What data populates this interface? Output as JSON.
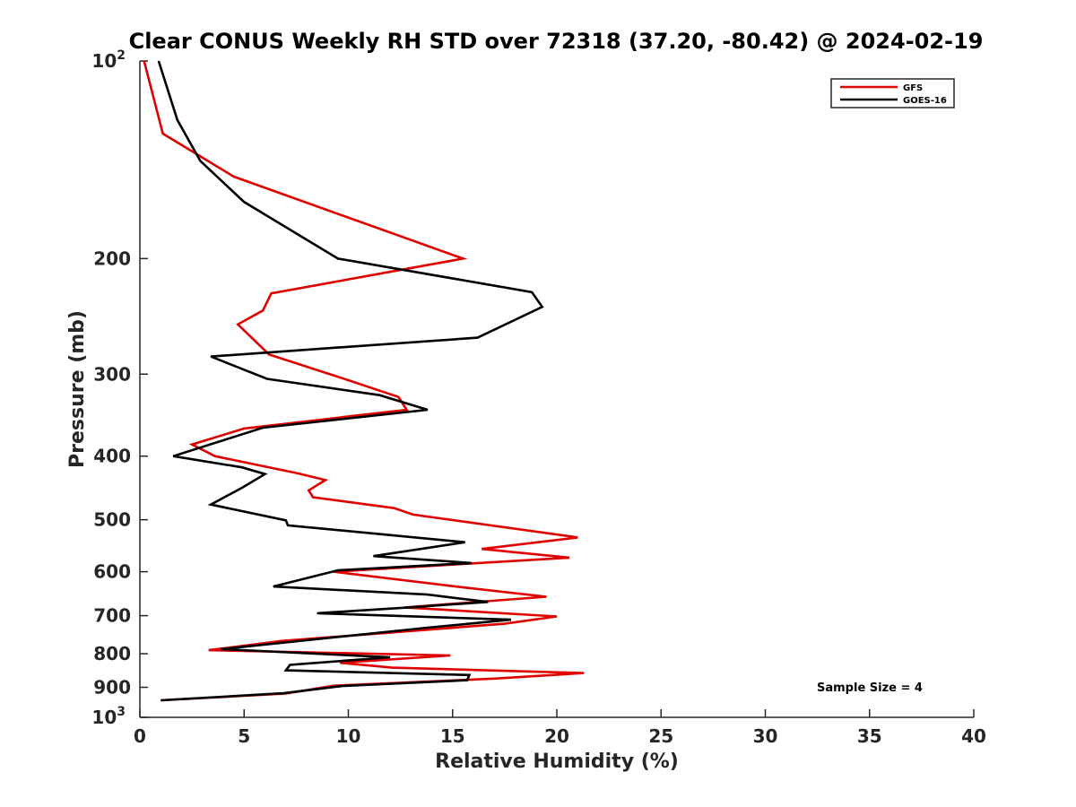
{
  "chart_data": {
    "type": "line",
    "title": "Clear CONUS Weekly RH STD over 72318 (37.20, -80.42) @ 2024-02-19",
    "xlabel": "Relative Humidity (%)",
    "ylabel": "Pressure (mb)",
    "xlim": [
      0,
      40
    ],
    "ylim": [
      100,
      1000
    ],
    "y_scale": "log",
    "y_reversed": true,
    "x_ticks": [
      0,
      5,
      10,
      15,
      20,
      25,
      30,
      35,
      40
    ],
    "x_tick_labels": [
      "0",
      "5",
      "10",
      "15",
      "20",
      "25",
      "30",
      "35",
      "40"
    ],
    "y_ticks": [
      100,
      200,
      300,
      400,
      500,
      600,
      700,
      800,
      900,
      1000
    ],
    "y_tick_labels": [
      "10^2",
      "200",
      "300",
      "400",
      "500",
      "600",
      "700",
      "800",
      "900",
      "10^3"
    ],
    "grid": false,
    "legend_position": "top-right",
    "annotation": "Sample Size = 4",
    "series": [
      {
        "name": "GFS",
        "color": "#e00000",
        "x": [
          0.2,
          1.1,
          4.5,
          15.5,
          6.3,
          5.9,
          4.7,
          6.2,
          9.8,
          12.4,
          12.8,
          5.0,
          2.5,
          3.6,
          7.6,
          8.9,
          8.1,
          8.3,
          12.2,
          13.1,
          21.0,
          16.4,
          20.6,
          9.3,
          15.7,
          19.5,
          12.7,
          20.0,
          17.5,
          6.8,
          3.3,
          14.9,
          9.6,
          12.1,
          21.3,
          17.0,
          9.3,
          7.0,
          1.0
        ],
        "y": [
          100,
          129,
          150,
          200,
          226,
          240,
          252,
          280,
          305,
          325,
          340,
          363,
          384,
          400,
          425,
          435,
          451,
          462,
          480,
          491,
          532,
          554,
          571,
          600,
          635,
          655,
          680,
          702,
          720,
          765,
          790,
          805,
          826,
          840,
          856,
          873,
          895,
          920,
          942
        ]
      },
      {
        "name": "GOES-16",
        "color": "#000000",
        "x": [
          0.9,
          1.8,
          2.9,
          5.0,
          9.5,
          18.8,
          19.3,
          16.2,
          3.4,
          6.1,
          11.5,
          13.8,
          5.9,
          1.6,
          4.9,
          6.0,
          4.9,
          3.4,
          7.0,
          7.1,
          15.6,
          11.2,
          15.9,
          9.5,
          6.4,
          13.8,
          16.7,
          12.9,
          8.5,
          17.8,
          13.8,
          3.9,
          12.0,
          7.2,
          7.0,
          15.8,
          15.7,
          9.7,
          6.9,
          1.0
        ],
        "y": [
          100,
          123,
          142,
          164,
          200,
          225,
          237,
          264,
          282,
          305,
          323,
          340,
          362,
          400,
          416,
          426,
          447,
          474,
          501,
          510,
          541,
          568,
          582,
          597,
          632,
          650,
          667,
          680,
          694,
          710,
          730,
          787,
          810,
          832,
          848,
          862,
          878,
          896,
          919,
          942
        ]
      }
    ]
  },
  "legend": {
    "items": [
      "GFS",
      "GOES-16"
    ]
  }
}
